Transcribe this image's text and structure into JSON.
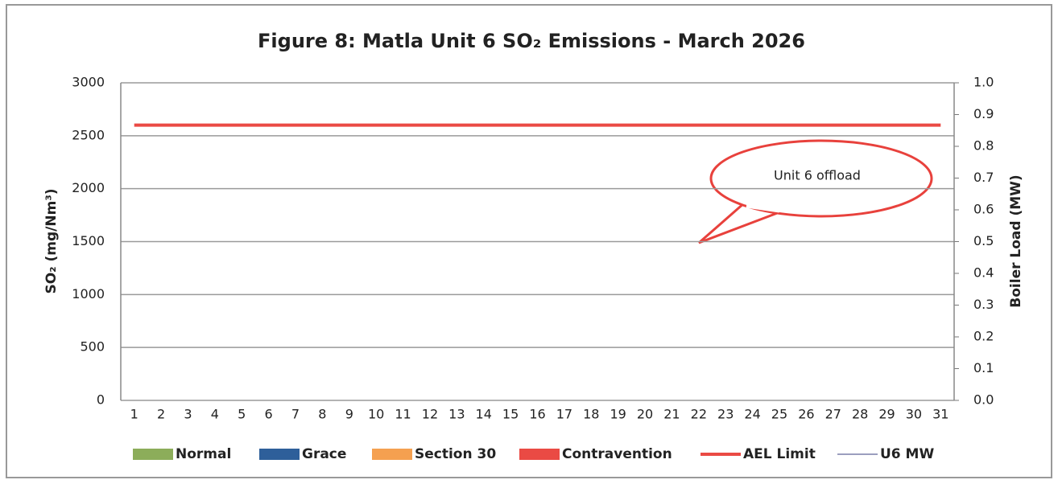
{
  "chart_data": {
    "type": "bar",
    "title": "Figure 8: Matla Unit 6 SO₂ Emissions - March 2026",
    "y_label": "SO₂ (mg/Nm³)",
    "y2_label": "Boiler Load (MW)",
    "annotation": "Unit 6 offload",
    "categories": [
      "1",
      "2",
      "3",
      "4",
      "5",
      "6",
      "7",
      "8",
      "9",
      "10",
      "11",
      "12",
      "13",
      "14",
      "15",
      "16",
      "17",
      "18",
      "19",
      "20",
      "21",
      "22",
      "23",
      "24",
      "25",
      "26",
      "27",
      "28",
      "29",
      "30",
      "31"
    ],
    "series": [
      {
        "name": "Normal",
        "color": "#8cad5a",
        "type": "bar",
        "values": [
          null,
          null,
          null,
          null,
          null,
          null,
          null,
          null,
          null,
          null,
          null,
          null,
          null,
          null,
          null,
          null,
          null,
          null,
          null,
          null,
          null,
          null,
          null,
          null,
          null,
          null,
          null,
          null,
          null,
          null,
          null
        ]
      },
      {
        "name": "Grace",
        "color": "#2e5f9a",
        "type": "bar",
        "values": [
          null,
          null,
          null,
          null,
          null,
          null,
          null,
          null,
          null,
          null,
          null,
          null,
          null,
          null,
          null,
          null,
          null,
          null,
          null,
          null,
          null,
          null,
          null,
          null,
          null,
          null,
          null,
          null,
          null,
          null,
          null
        ]
      },
      {
        "name": "Section 30",
        "color": "#f5a050",
        "type": "bar",
        "values": [
          null,
          null,
          null,
          null,
          null,
          null,
          null,
          null,
          null,
          null,
          null,
          null,
          null,
          null,
          null,
          null,
          null,
          null,
          null,
          null,
          null,
          null,
          null,
          null,
          null,
          null,
          null,
          null,
          null,
          null,
          null
        ]
      },
      {
        "name": "Contravention",
        "color": "#ea4a44",
        "type": "bar",
        "values": [
          null,
          null,
          null,
          null,
          null,
          null,
          null,
          null,
          null,
          null,
          null,
          null,
          null,
          null,
          null,
          null,
          null,
          null,
          null,
          null,
          null,
          null,
          null,
          null,
          null,
          null,
          null,
          null,
          null,
          null,
          null
        ]
      },
      {
        "name": "AEL Limit",
        "color": "#ea4a44",
        "type": "line",
        "values": [
          2600,
          2600,
          2600,
          2600,
          2600,
          2600,
          2600,
          2600,
          2600,
          2600,
          2600,
          2600,
          2600,
          2600,
          2600,
          2600,
          2600,
          2600,
          2600,
          2600,
          2600,
          2600,
          2600,
          2600,
          2600,
          2600,
          2600,
          2600,
          2600,
          2600,
          2600
        ]
      },
      {
        "name": "U6 MW",
        "color": "#7a7fa8",
        "type": "line",
        "axis": "y2",
        "values": [
          null,
          null,
          null,
          null,
          null,
          null,
          null,
          null,
          null,
          null,
          null,
          null,
          null,
          null,
          null,
          null,
          null,
          null,
          null,
          null,
          null,
          null,
          null,
          null,
          null,
          null,
          null,
          null,
          null,
          null,
          null
        ]
      }
    ],
    "ylim": [
      0,
      3000
    ],
    "yticks": [
      0,
      500,
      1000,
      1500,
      2000,
      2500,
      3000
    ],
    "y2lim": [
      0,
      1
    ],
    "y2ticks": [
      {
        "value": 0,
        "label": "0.0"
      },
      0.1,
      0.2,
      0.3,
      0.4,
      0.5,
      0.6,
      0.7,
      0.8,
      0.9,
      {
        "value": 1,
        "label": "1.0"
      }
    ],
    "grid": true,
    "legend": "bottom"
  }
}
